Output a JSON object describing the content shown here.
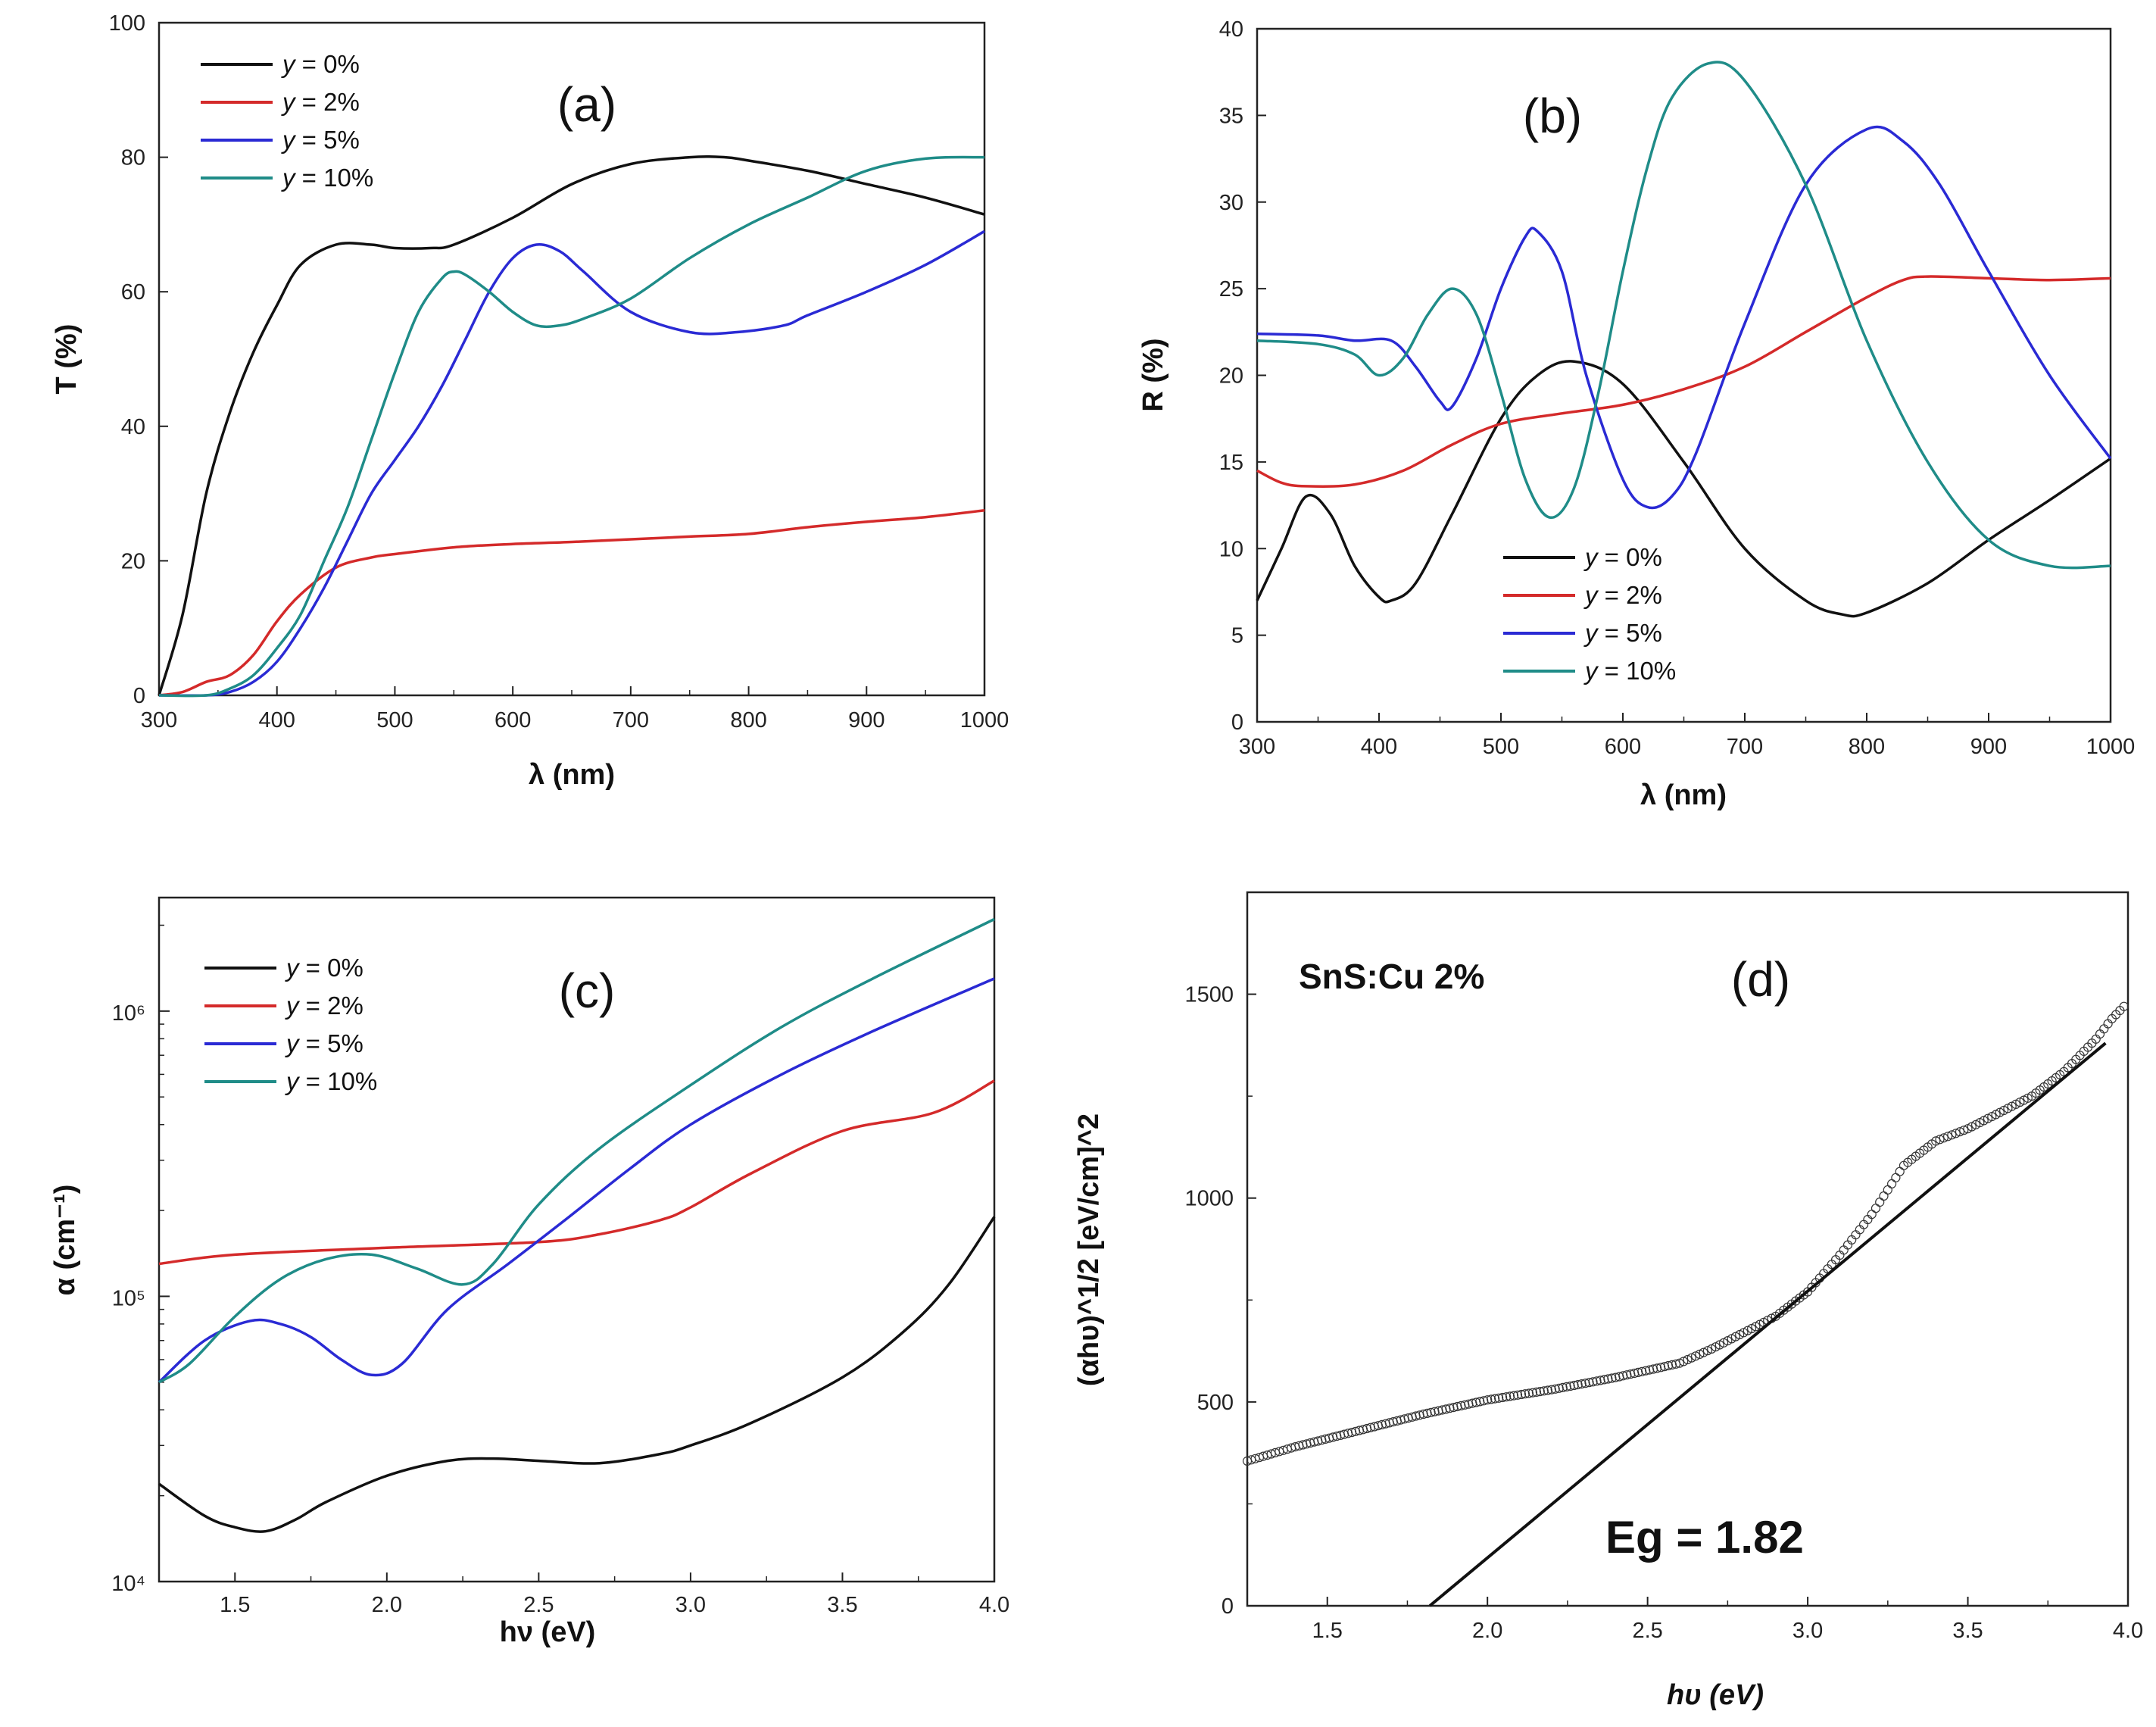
{
  "colors": {
    "y0": "#111111",
    "y2": "#d42a2a",
    "y5": "#2a2ad4",
    "y10": "#1f8c88"
  },
  "chart_data": [
    {
      "id": "a",
      "type": "line",
      "panel_label": "(a)",
      "xlabel": "λ (nm)",
      "ylabel": "T (%)",
      "xlim": [
        300,
        1000
      ],
      "ylim": [
        0,
        100
      ],
      "xticks": [
        "300",
        "400",
        "500",
        "600",
        "700",
        "800",
        "900",
        "1000"
      ],
      "yticks": [
        "0",
        "20",
        "40",
        "60",
        "80",
        "100"
      ],
      "legend_position": "top-left",
      "series": [
        {
          "name": "y = 0%",
          "color_key": "y0",
          "x": [
            300,
            320,
            340,
            360,
            380,
            400,
            420,
            450,
            480,
            500,
            530,
            550,
            600,
            650,
            700,
            750,
            780,
            800,
            850,
            900,
            950,
            1000
          ],
          "y": [
            0,
            12,
            30,
            42,
            51,
            58,
            64,
            67,
            67,
            66.5,
            66.5,
            67,
            71,
            76,
            79,
            80,
            80,
            79.5,
            78,
            76,
            74,
            71.5
          ]
        },
        {
          "name": "y = 2%",
          "color_key": "y2",
          "x": [
            300,
            320,
            340,
            360,
            380,
            400,
            420,
            450,
            480,
            500,
            550,
            600,
            650,
            700,
            750,
            800,
            850,
            900,
            950,
            1000
          ],
          "y": [
            0,
            0.5,
            2,
            3,
            6,
            11,
            15,
            19,
            20.5,
            21,
            22,
            22.5,
            22.8,
            23.2,
            23.6,
            24,
            25,
            25.8,
            26.5,
            27.5
          ]
        },
        {
          "name": "y = 5%",
          "color_key": "y5",
          "x": [
            300,
            340,
            360,
            380,
            400,
            420,
            440,
            460,
            480,
            500,
            520,
            540,
            560,
            580,
            600,
            620,
            640,
            660,
            700,
            750,
            790,
            830,
            850,
            900,
            950,
            1000
          ],
          "y": [
            0,
            0,
            0.5,
            2,
            5,
            10,
            16,
            23,
            30,
            35,
            40,
            46,
            53,
            60,
            65,
            67,
            66,
            63,
            57,
            54,
            54,
            55,
            56.5,
            60,
            64,
            69
          ]
        },
        {
          "name": "y = 10%",
          "color_key": "y10",
          "x": [
            300,
            340,
            360,
            380,
            400,
            420,
            440,
            460,
            480,
            500,
            520,
            540,
            550,
            560,
            580,
            600,
            620,
            640,
            660,
            700,
            750,
            800,
            850,
            900,
            950,
            1000
          ],
          "y": [
            0,
            0,
            1,
            3,
            7,
            12,
            20,
            28,
            38,
            48,
            57,
            62,
            63,
            62.5,
            60,
            57,
            55,
            55,
            56,
            59,
            65,
            70,
            74,
            78,
            79.8,
            80
          ]
        }
      ]
    },
    {
      "id": "b",
      "type": "line",
      "panel_label": "(b)",
      "xlabel": "λ (nm)",
      "ylabel": "R (%)",
      "xlim": [
        300,
        1000
      ],
      "ylim": [
        0,
        40
      ],
      "xticks": [
        "300",
        "400",
        "500",
        "600",
        "700",
        "800",
        "900",
        "1000"
      ],
      "yticks": [
        "0",
        "5",
        "10",
        "15",
        "20",
        "25",
        "30",
        "35",
        "40"
      ],
      "legend_position": "bottom-center",
      "series": [
        {
          "name": "y = 0%",
          "color_key": "y0",
          "x": [
            300,
            320,
            340,
            360,
            380,
            400,
            410,
            430,
            460,
            500,
            530,
            560,
            600,
            650,
            700,
            750,
            780,
            800,
            850,
            900,
            950,
            1000
          ],
          "y": [
            7,
            10,
            13,
            12,
            9,
            7.2,
            7,
            8,
            12,
            17.5,
            20,
            20.8,
            19.5,
            15,
            10,
            7,
            6.2,
            6.3,
            8,
            10.5,
            12.8,
            15.2
          ]
        },
        {
          "name": "y = 2%",
          "color_key": "y2",
          "x": [
            300,
            320,
            340,
            380,
            420,
            460,
            500,
            550,
            600,
            650,
            700,
            750,
            800,
            830,
            850,
            900,
            950,
            1000
          ],
          "y": [
            14.5,
            13.8,
            13.6,
            13.7,
            14.5,
            16,
            17.2,
            17.8,
            18.3,
            19.2,
            20.5,
            22.5,
            24.5,
            25.5,
            25.7,
            25.6,
            25.5,
            25.6
          ]
        },
        {
          "name": "y = 5%",
          "color_key": "y5",
          "x": [
            300,
            350,
            380,
            410,
            430,
            450,
            460,
            480,
            500,
            520,
            530,
            550,
            570,
            600,
            620,
            640,
            660,
            700,
            750,
            800,
            830,
            860,
            900,
            950,
            1000
          ],
          "y": [
            22.4,
            22.3,
            22,
            22,
            20.5,
            18.5,
            18.2,
            21,
            25,
            28,
            28.3,
            26,
            20,
            14,
            12.4,
            13,
            15.5,
            23,
            31,
            34.2,
            33.5,
            31,
            26,
            20,
            15.2
          ]
        },
        {
          "name": "y = 10%",
          "color_key": "y10",
          "x": [
            300,
            350,
            380,
            400,
            420,
            440,
            460,
            480,
            500,
            520,
            540,
            560,
            580,
            600,
            620,
            640,
            670,
            700,
            750,
            800,
            850,
            900,
            950,
            1000
          ],
          "y": [
            22,
            21.8,
            21.2,
            20,
            21,
            23.5,
            25,
            23.5,
            19,
            14,
            11.8,
            13.5,
            19,
            26,
            32,
            36,
            38,
            37,
            31,
            22,
            15,
            10.5,
            9,
            9
          ]
        }
      ]
    },
    {
      "id": "c",
      "type": "line",
      "panel_label": "(c)",
      "xlabel": "hν (eV)",
      "ylabel": "α (cm⁻¹)",
      "xscale": "linear",
      "yscale": "log",
      "xlim": [
        1.25,
        4.0
      ],
      "ylim": [
        10000,
        2500000
      ],
      "xticks": [
        "1.5",
        "2.0",
        "2.5",
        "3.0",
        "3.5",
        "4.0"
      ],
      "yticks": [
        "10⁴",
        "10⁵",
        "10⁶"
      ],
      "legend_position": "top-left",
      "series": [
        {
          "name": "y = 0%",
          "color_key": "y0",
          "x": [
            1.25,
            1.4,
            1.5,
            1.6,
            1.7,
            1.8,
            2.0,
            2.2,
            2.35,
            2.5,
            2.7,
            2.9,
            3.0,
            3.2,
            3.5,
            3.7,
            3.85,
            4.0
          ],
          "y": [
            22000,
            17000,
            15500,
            15000,
            16500,
            19000,
            23500,
            26500,
            27000,
            26500,
            26000,
            28000,
            30000,
            36000,
            52000,
            75000,
            110000,
            190000
          ]
        },
        {
          "name": "y = 2%",
          "color_key": "y2",
          "x": [
            1.25,
            1.5,
            2.0,
            2.5,
            2.7,
            2.9,
            3.0,
            3.2,
            3.5,
            3.8,
            4.0
          ],
          "y": [
            130000,
            140000,
            148000,
            155000,
            165000,
            185000,
            205000,
            270000,
            380000,
            440000,
            570000
          ]
        },
        {
          "name": "y = 5%",
          "color_key": "y5",
          "x": [
            1.25,
            1.4,
            1.55,
            1.65,
            1.75,
            1.85,
            1.95,
            2.05,
            2.2,
            2.4,
            2.6,
            2.8,
            3.0,
            3.3,
            3.6,
            4.0
          ],
          "y": [
            50000,
            70000,
            82000,
            80000,
            72000,
            60000,
            53000,
            58000,
            90000,
            130000,
            190000,
            280000,
            400000,
            600000,
            850000,
            1300000
          ]
        },
        {
          "name": "y = 10%",
          "color_key": "y10",
          "x": [
            1.25,
            1.35,
            1.5,
            1.65,
            1.8,
            1.95,
            2.1,
            2.25,
            2.35,
            2.5,
            2.7,
            3.0,
            3.3,
            3.6,
            4.0
          ],
          "y": [
            50000,
            58000,
            85000,
            115000,
            135000,
            140000,
            125000,
            110000,
            130000,
            210000,
            330000,
            550000,
            880000,
            1300000,
            2100000
          ]
        }
      ]
    },
    {
      "id": "d",
      "type": "scatter",
      "panel_label": "(d)",
      "title": "SnS:Cu 2%",
      "annotation": "Eg = 1.82",
      "xlabel": "hυ (eV)",
      "ylabel": "(αhυ)^1/2 [eV/cm]^2",
      "xlim": [
        1.25,
        4.0
      ],
      "ylim": [
        0,
        1750
      ],
      "xticks": [
        "1.5",
        "2.0",
        "2.5",
        "3.0",
        "3.5",
        "4.0"
      ],
      "yticks": [
        "0",
        "500",
        "1000",
        "1500"
      ],
      "series": [
        {
          "name": "data",
          "marker": "open-circle",
          "x": [
            1.25,
            1.4,
            1.6,
            1.8,
            2.0,
            2.2,
            2.4,
            2.6,
            2.7,
            2.8,
            2.9,
            3.0,
            3.1,
            3.2,
            3.3,
            3.4,
            3.5,
            3.6,
            3.7,
            3.8,
            3.9,
            3.95,
            4.0
          ],
          "y": [
            355,
            390,
            430,
            470,
            505,
            530,
            560,
            595,
            630,
            670,
            710,
            770,
            860,
            960,
            1080,
            1140,
            1170,
            1210,
            1250,
            1310,
            1390,
            1440,
            1480
          ]
        },
        {
          "name": "fit",
          "type": "line",
          "x": [
            1.82,
            3.93
          ],
          "y": [
            0,
            1380
          ]
        }
      ]
    }
  ]
}
